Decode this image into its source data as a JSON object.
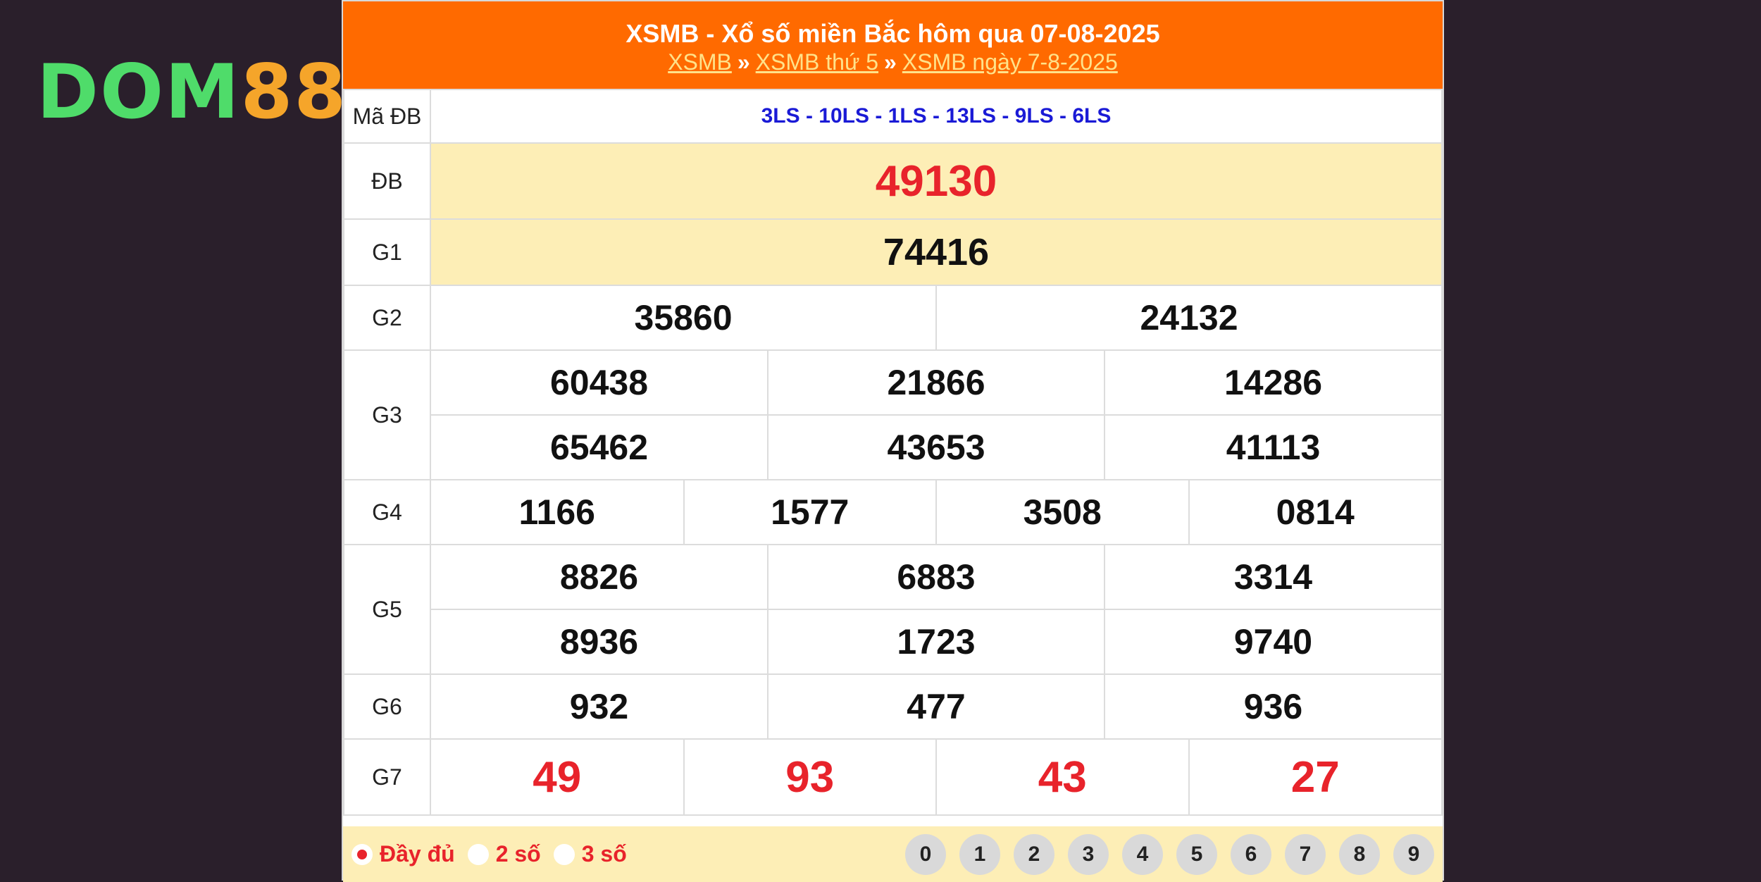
{
  "logo": {
    "text_main": "DOM",
    "text_num": "88",
    "color_main": "#4fdc6a",
    "color_num": "#f5a52a"
  },
  "header": {
    "title": "XSMB - Xổ số miền Bắc hôm qua 07-08-2025",
    "crumbs": [
      "XSMB",
      "XSMB thứ 5",
      "XSMB ngày 7-8-2025"
    ],
    "separator": "»"
  },
  "results": {
    "ma_db": {
      "label": "Mã ĐB",
      "value": "3LS - 10LS - 1LS - 13LS - 9LS - 6LS"
    },
    "db": {
      "label": "ĐB",
      "values": [
        "49130"
      ]
    },
    "g1": {
      "label": "G1",
      "values": [
        "74416"
      ]
    },
    "g2": {
      "label": "G2",
      "values": [
        "35860",
        "24132"
      ]
    },
    "g3": {
      "label": "G3",
      "values": [
        "60438",
        "21866",
        "14286",
        "65462",
        "43653",
        "41113"
      ]
    },
    "g4": {
      "label": "G4",
      "values": [
        "1166",
        "1577",
        "3508",
        "0814"
      ]
    },
    "g5": {
      "label": "G5",
      "values": [
        "8826",
        "6883",
        "3314",
        "8936",
        "1723",
        "9740"
      ]
    },
    "g6": {
      "label": "G6",
      "values": [
        "932",
        "477",
        "936"
      ]
    },
    "g7": {
      "label": "G7",
      "values": [
        "49",
        "93",
        "43",
        "27"
      ]
    }
  },
  "footer": {
    "options": [
      {
        "label": "Đầy đủ",
        "selected": true
      },
      {
        "label": "2 số",
        "selected": false
      },
      {
        "label": "3 số",
        "selected": false
      }
    ],
    "digits": [
      "0",
      "1",
      "2",
      "3",
      "4",
      "5",
      "6",
      "7",
      "8",
      "9"
    ]
  },
  "colors": {
    "header_bg": "#ff6a00",
    "highlight_bg": "#fdeeb6",
    "prize_red": "#e8232b",
    "code_blue": "#1a1ad6",
    "page_bg": "#2a1f2b"
  }
}
